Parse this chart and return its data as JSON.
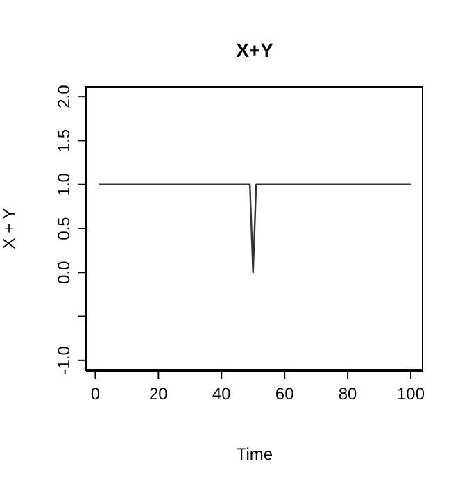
{
  "chart_data": {
    "type": "line",
    "title": "X+Y",
    "xlabel": "Time",
    "ylabel": "X + Y",
    "x": [
      1,
      49,
      50,
      51,
      100
    ],
    "series": [
      {
        "color": "#333333",
        "values": [
          1,
          1,
          0,
          1,
          1
        ]
      }
    ],
    "xlim": [
      -2.96,
      103.96
    ],
    "xticks": [
      0,
      20,
      40,
      60,
      80,
      100
    ],
    "ylim": [
      -1.12,
      2.12
    ],
    "yticks": [
      {
        "value": -1,
        "label": "-1.0"
      },
      {
        "value": -0.5,
        "label": null
      },
      {
        "value": 0,
        "label": "0.0"
      },
      {
        "value": 0.5,
        "label": "0.5"
      },
      {
        "value": 1,
        "label": "1.0"
      },
      {
        "value": 1.5,
        "label": "1.5"
      },
      {
        "value": 2,
        "label": "2.0"
      }
    ],
    "grid": false,
    "legend": false,
    "marker": "none",
    "line_style": "solid"
  }
}
